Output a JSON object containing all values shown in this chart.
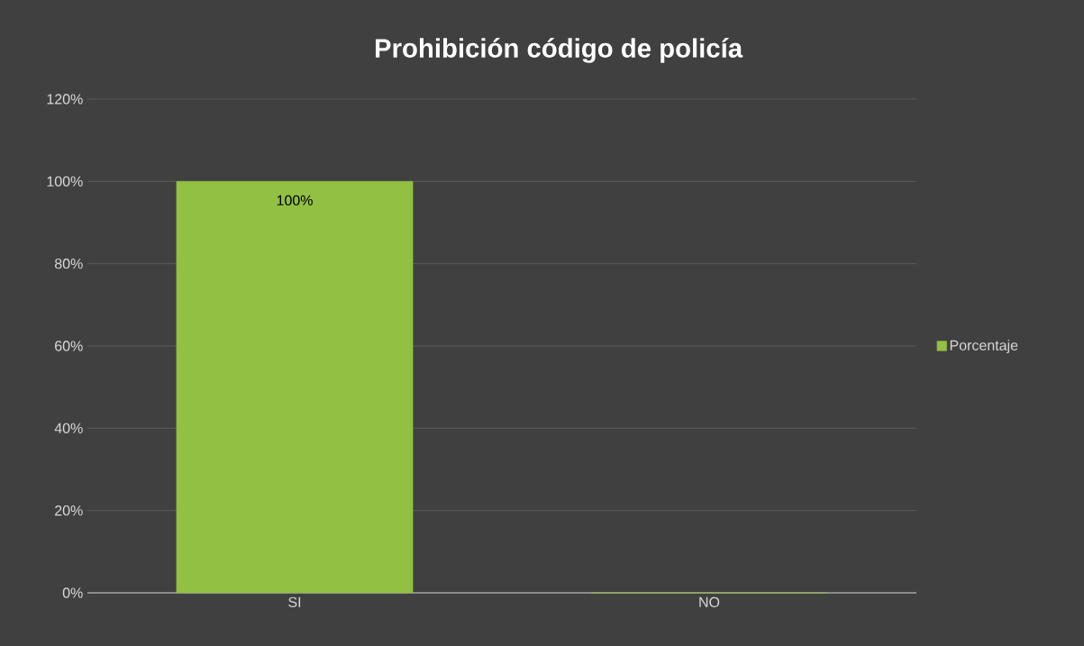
{
  "chart_data": {
    "type": "bar",
    "title": "Prohibición código de policía",
    "categories": [
      "SI",
      "NO"
    ],
    "series": [
      {
        "name": "Porcentaje",
        "color": "#92c043",
        "values": [
          100,
          0
        ],
        "value_labels": [
          "100%",
          null
        ]
      }
    ],
    "ylim": [
      0,
      120
    ],
    "yticks": [
      {
        "value": 0,
        "label": "0%"
      },
      {
        "value": 20,
        "label": "20%"
      },
      {
        "value": 40,
        "label": "40%"
      },
      {
        "value": 60,
        "label": "60%"
      },
      {
        "value": 80,
        "label": "80%"
      },
      {
        "value": 100,
        "label": "100%"
      },
      {
        "value": 120,
        "label": "120%"
      }
    ],
    "grid": "y",
    "legend": "right"
  }
}
